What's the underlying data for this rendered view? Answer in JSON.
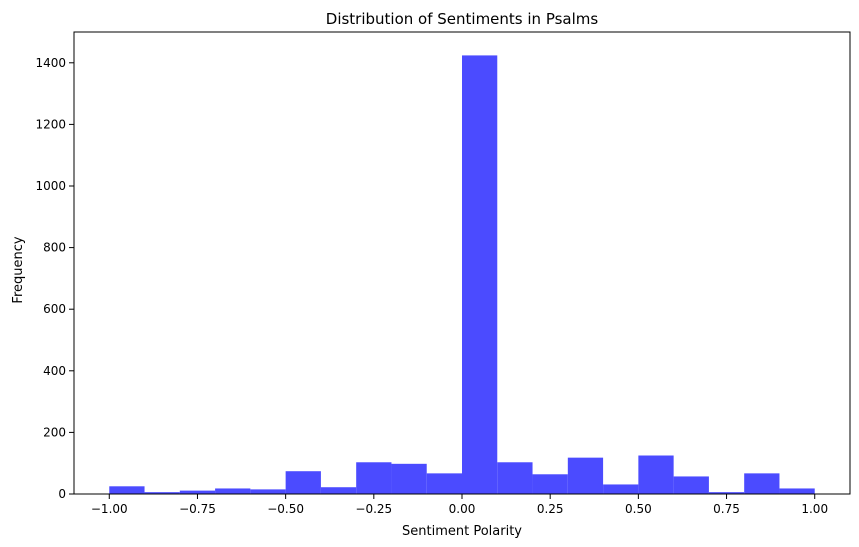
{
  "chart_data": {
    "type": "bar",
    "title": "Distribution of Sentiments in Psalms",
    "xlabel": "Sentiment Polarity",
    "ylabel": "Frequency",
    "bar_color": "#4b4bff",
    "xlim": [
      -1.1,
      1.1
    ],
    "ylim": [
      0,
      1500
    ],
    "grid": false,
    "x_ticks": [
      -1.0,
      -0.75,
      -0.5,
      -0.25,
      0.0,
      0.25,
      0.5,
      0.75,
      1.0
    ],
    "x_tick_labels": [
      "−1.00",
      "−0.75",
      "−0.50",
      "−0.25",
      "0.00",
      "0.25",
      "0.50",
      "0.75",
      "1.00"
    ],
    "y_ticks": [
      0,
      200,
      400,
      600,
      800,
      1000,
      1200,
      1400
    ],
    "y_tick_labels": [
      "0",
      "200",
      "400",
      "600",
      "800",
      "1000",
      "1200",
      "1400"
    ],
    "bins": [
      {
        "start": -1.0,
        "end": -0.9,
        "count": 25
      },
      {
        "start": -0.9,
        "end": -0.8,
        "count": 6
      },
      {
        "start": -0.8,
        "end": -0.7,
        "count": 11
      },
      {
        "start": -0.7,
        "end": -0.6,
        "count": 18
      },
      {
        "start": -0.6,
        "end": -0.5,
        "count": 15
      },
      {
        "start": -0.5,
        "end": -0.4,
        "count": 74
      },
      {
        "start": -0.4,
        "end": -0.3,
        "count": 22
      },
      {
        "start": -0.3,
        "end": -0.2,
        "count": 103
      },
      {
        "start": -0.2,
        "end": -0.1,
        "count": 98
      },
      {
        "start": -0.1,
        "end": 0.0,
        "count": 67
      },
      {
        "start": 0.0,
        "end": 0.1,
        "count": 1424
      },
      {
        "start": 0.1,
        "end": 0.2,
        "count": 103
      },
      {
        "start": 0.2,
        "end": 0.3,
        "count": 64
      },
      {
        "start": 0.3,
        "end": 0.4,
        "count": 118
      },
      {
        "start": 0.4,
        "end": 0.5,
        "count": 31
      },
      {
        "start": 0.5,
        "end": 0.6,
        "count": 125
      },
      {
        "start": 0.6,
        "end": 0.7,
        "count": 57
      },
      {
        "start": 0.7,
        "end": 0.8,
        "count": 6
      },
      {
        "start": 0.8,
        "end": 0.9,
        "count": 67
      },
      {
        "start": 0.9,
        "end": 1.0,
        "count": 18
      }
    ]
  }
}
